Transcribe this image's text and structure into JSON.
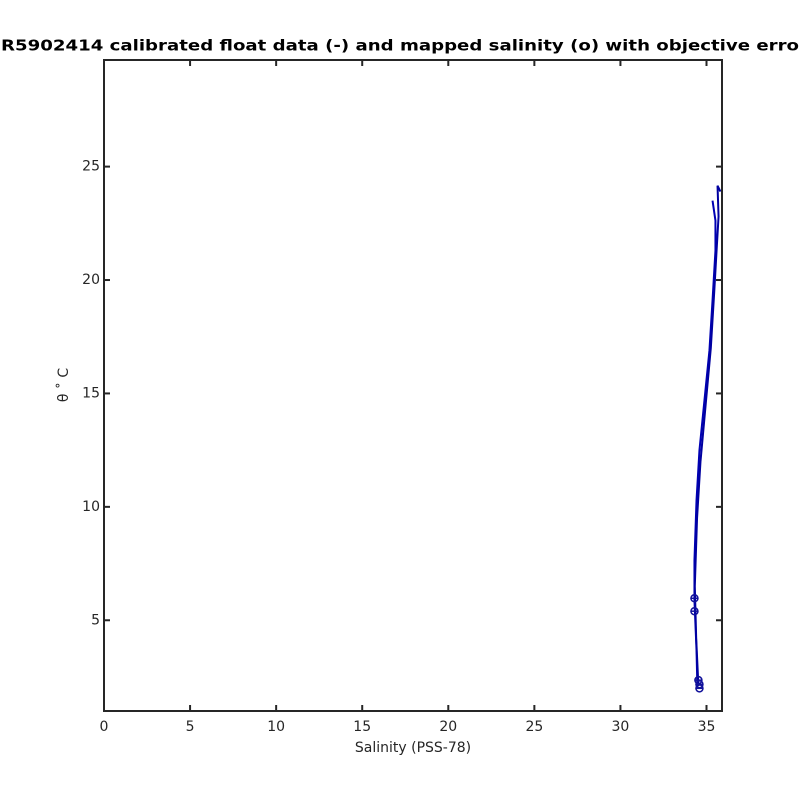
{
  "chart_data": {
    "type": "line",
    "title": "R5902414 calibrated float data (-) and mapped salinity (o) with objective erro",
    "xlabel": "Salinity (PSS-78)",
    "ylabel": "θ ˚ C",
    "xlim": [
      0,
      35.9
    ],
    "ylim": [
      1,
      29.7
    ],
    "xticks": [
      0,
      5,
      10,
      15,
      20,
      25,
      30,
      35
    ],
    "yticks": [
      5,
      10,
      15,
      20,
      25
    ],
    "grid": false,
    "series": [
      {
        "style": "line",
        "color": "#0000b4",
        "x": [
          34.47,
          34.42,
          34.3,
          34.3,
          34.42,
          34.59,
          34.88,
          35.17,
          35.35,
          35.52,
          35.52,
          35.35
        ],
        "values": [
          2.05,
          3.68,
          5.88,
          7.64,
          10.29,
          12.49,
          14.69,
          16.89,
          19.1,
          21.3,
          22.62,
          23.5
        ]
      },
      {
        "style": "line",
        "color": "#0000a0",
        "x": [
          34.53,
          34.4,
          34.32,
          34.45,
          34.65,
          34.95,
          35.25,
          35.45,
          35.6,
          35.7,
          35.64,
          35.81
        ],
        "values": [
          2.1,
          4.2,
          6.5,
          9.5,
          12.0,
          14.5,
          17.0,
          19.5,
          21.5,
          22.8,
          24.16,
          23.9
        ]
      },
      {
        "style": "markers",
        "color": "#10109a",
        "x": [
          34.3,
          34.3,
          34.53,
          34.59,
          34.59
        ],
        "values": [
          5.97,
          5.4,
          2.36,
          2.18,
          2.0
        ]
      }
    ]
  }
}
